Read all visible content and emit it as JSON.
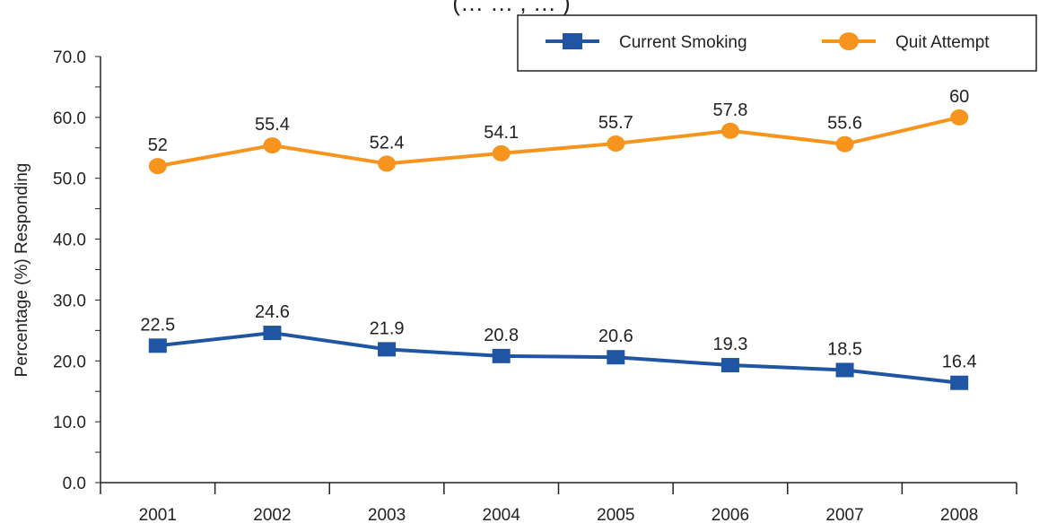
{
  "chart_data": {
    "type": "line",
    "title_fragment": "(… … ,  …   )",
    "categories": [
      "2001",
      "2002",
      "2003",
      "2004",
      "2005",
      "2006",
      "2007",
      "2008"
    ],
    "series": [
      {
        "name": "Current Smoking",
        "color": "#1f55a3",
        "marker": "square",
        "values": [
          22.5,
          24.6,
          21.9,
          20.8,
          20.6,
          19.3,
          18.5,
          16.4
        ],
        "labels": [
          "22.5",
          "24.6",
          "21.9",
          "20.8",
          "20.6",
          "19.3",
          "18.5",
          "16.4"
        ]
      },
      {
        "name": "Quit Attempt",
        "color": "#f7941d",
        "marker": "circle",
        "values": [
          52,
          55.4,
          52.4,
          54.1,
          55.7,
          57.8,
          55.6,
          60
        ],
        "labels": [
          "52",
          "55.4",
          "52.4",
          "54.1",
          "55.7",
          "57.8",
          "55.6",
          "60"
        ]
      }
    ],
    "ylabel": "Percentage (%) Responding",
    "xlabel": "",
    "ylim": [
      0,
      70
    ],
    "yticks": [
      "0.0",
      "10.0",
      "20.0",
      "30.0",
      "40.0",
      "50.0",
      "60.0",
      "70.0"
    ],
    "grid": false,
    "legend_position": "top-right"
  }
}
